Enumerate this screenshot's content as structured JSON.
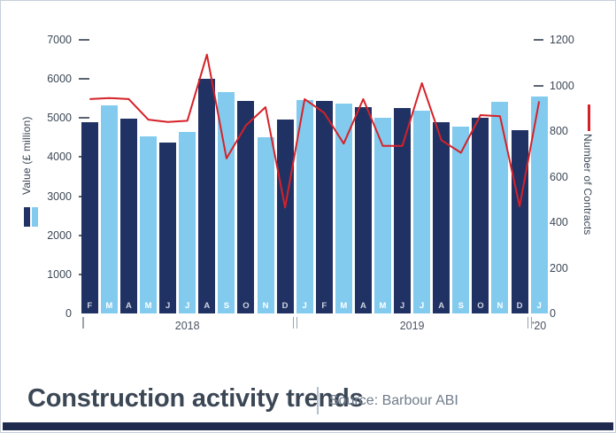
{
  "footer": {
    "title": "Construction activity trends",
    "source": "Source: Barbour ABI"
  },
  "chart_data": {
    "type": "bar",
    "title": "Construction activity trends",
    "source": "Source: Barbour ABI",
    "left_axis": {
      "label": "Value (£ million)",
      "min": 0,
      "max": 7000,
      "ticks": [
        7000,
        6000,
        5000,
        4000,
        3000,
        2000,
        1000,
        0
      ]
    },
    "right_axis": {
      "label": "Number of Contracts",
      "min": 0,
      "max": 1200,
      "ticks": [
        1200,
        1000,
        800,
        600,
        400,
        200,
        0
      ]
    },
    "categories": [
      "F",
      "M",
      "A",
      "M",
      "J",
      "J",
      "A",
      "S",
      "O",
      "N",
      "D",
      "J",
      "F",
      "M",
      "A",
      "M",
      "J",
      "J",
      "A",
      "S",
      "O",
      "N",
      "D",
      "J"
    ],
    "year_groups": [
      {
        "label": "2018",
        "from": 0,
        "to": 10
      },
      {
        "label": "2019",
        "from": 11,
        "to": 22
      },
      {
        "label": "'20",
        "from": 23,
        "to": 23
      }
    ],
    "series": [
      {
        "name": "Value (£ million)",
        "type": "bar",
        "axis": "left",
        "values": [
          4890,
          5320,
          4980,
          4530,
          4380,
          4640,
          6000,
          5660,
          5430,
          4510,
          4950,
          5450,
          5440,
          5370,
          5280,
          5000,
          5260,
          5190,
          4890,
          4770,
          5010,
          5410,
          4680,
          5550
        ]
      },
      {
        "name": "Number of Contracts",
        "type": "line",
        "axis": "right",
        "values": [
          940,
          945,
          940,
          850,
          840,
          845,
          1135,
          680,
          825,
          905,
          465,
          940,
          880,
          745,
          940,
          735,
          735,
          1010,
          760,
          705,
          870,
          865,
          470,
          930
        ]
      }
    ],
    "legend_position": "left-and-right-axis",
    "grid": false,
    "colors": {
      "bar_dark_navy": "#203264",
      "bar_light_blue": "#82cbee",
      "line_red": "#d62128",
      "accent_strip": "#1f2b4e",
      "title_text": "#3b4755",
      "source_text": "#6f7c8c"
    }
  }
}
